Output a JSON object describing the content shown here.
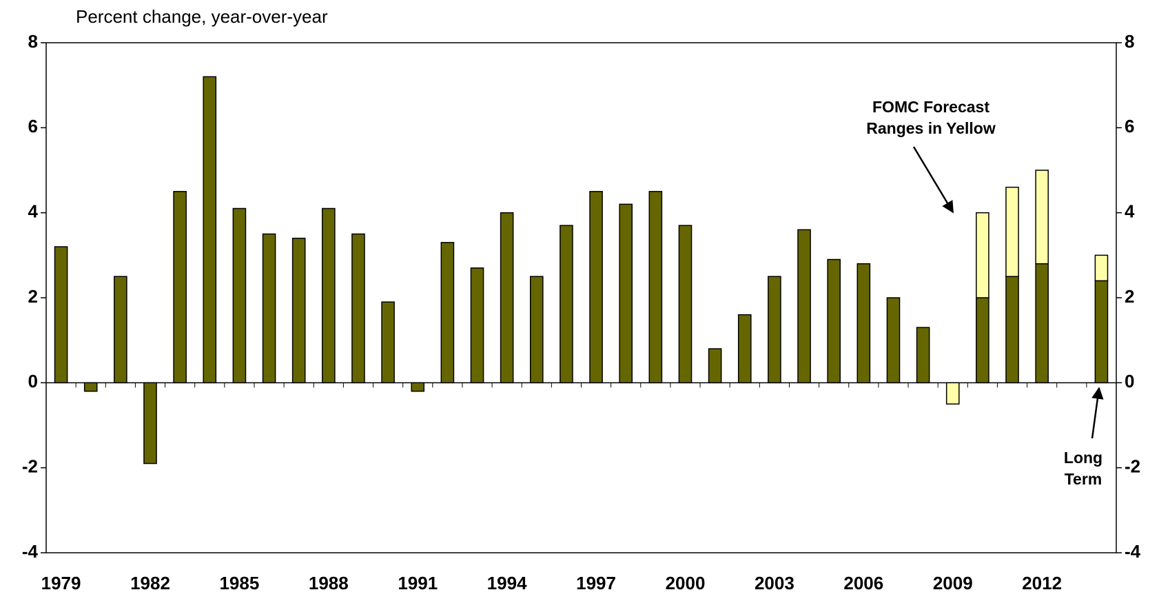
{
  "chart_data": {
    "type": "bar",
    "stacked": true,
    "ylabel": "Percent change, year-over-year",
    "categories": [
      "1979",
      null,
      null,
      "1982",
      null,
      null,
      "1985",
      null,
      null,
      "1988",
      null,
      null,
      "1991",
      null,
      null,
      "1994",
      null,
      null,
      "1997",
      null,
      null,
      "2000",
      null,
      null,
      "2003",
      null,
      null,
      "2006",
      null,
      null,
      "2009",
      null,
      null,
      "2012",
      null,
      null
    ],
    "series": [
      {
        "color": "#666600",
        "values": [
          3.2,
          -0.2,
          2.5,
          -1.9,
          4.5,
          7.2,
          4.1,
          3.5,
          3.4,
          4.1,
          3.5,
          1.9,
          -0.2,
          3.3,
          2.7,
          4.0,
          2.5,
          3.7,
          4.5,
          4.2,
          4.5,
          3.7,
          0.8,
          1.6,
          2.5,
          3.6,
          2.9,
          2.8,
          2.0,
          1.3,
          null,
          2.0,
          2.5,
          2.8,
          null,
          2.4
        ]
      },
      {
        "color": "#ffffaa",
        "values": [
          null,
          null,
          null,
          null,
          null,
          null,
          null,
          null,
          null,
          null,
          null,
          null,
          null,
          null,
          null,
          null,
          null,
          null,
          null,
          null,
          null,
          null,
          null,
          null,
          null,
          null,
          null,
          null,
          null,
          null,
          -0.5,
          2.0,
          2.1,
          2.2,
          null,
          0.6
        ]
      }
    ],
    "ylim": [
      -4,
      8
    ],
    "yticks": [
      -4,
      -2,
      0,
      2,
      4,
      6,
      8
    ],
    "y2lim": [
      -4,
      8
    ],
    "y2ticks": [
      -4,
      -2,
      0,
      2,
      4,
      6,
      8
    ],
    "annotations": [
      {
        "lines": [
          "FOMC Forecast",
          "Ranges in Yellow"
        ]
      },
      {
        "lines": [
          "Long",
          "Term"
        ]
      }
    ]
  }
}
